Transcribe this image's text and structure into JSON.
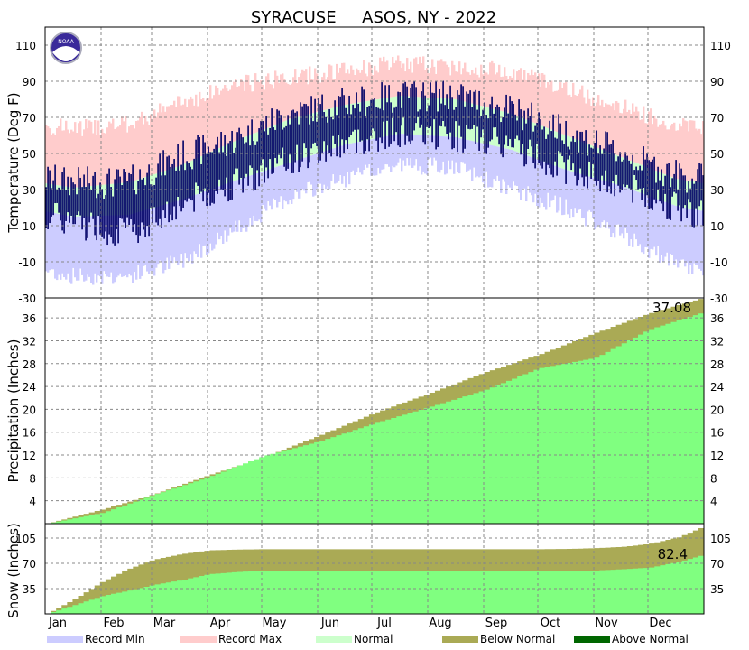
{
  "chart_data": [
    {
      "type": "bar",
      "panel": "temperature",
      "title": "SYRACUSE     ASOS, NY - 2022",
      "ylabel": "Temperature (Deg F)",
      "ylim": [
        -30,
        120
      ],
      "yticks": [
        -30,
        -10,
        10,
        30,
        50,
        70,
        90,
        110
      ],
      "grid": true,
      "months": [
        "Jan",
        "Feb",
        "Mar",
        "Apr",
        "May",
        "Jun",
        "Jul",
        "Aug",
        "Sep",
        "Oct",
        "Nov",
        "Dec"
      ],
      "x": [
        15,
        46,
        74,
        105,
        135,
        166,
        196,
        227,
        258,
        288,
        319,
        349
      ],
      "series": [
        {
          "name": "Record Min",
          "color": "#ccccff",
          "values": [
            -18,
            -18,
            -10,
            8,
            26,
            36,
            44,
            42,
            30,
            20,
            5,
            -12
          ]
        },
        {
          "name": "Record Max",
          "color": "#ffcccc",
          "values": [
            64,
            66,
            78,
            88,
            92,
            96,
            100,
            98,
            96,
            86,
            76,
            66
          ]
        },
        {
          "name": "Normal",
          "color": "#ccffcc",
          "low": [
            15,
            16,
            24,
            35,
            45,
            55,
            61,
            59,
            52,
            41,
            32,
            21
          ],
          "high": [
            31,
            34,
            43,
            57,
            69,
            77,
            82,
            80,
            72,
            60,
            48,
            36
          ]
        },
        {
          "name": "Observed",
          "color": "#000066",
          "low": [
            12,
            6,
            22,
            34,
            46,
            56,
            62,
            60,
            54,
            42,
            32,
            20
          ],
          "high": [
            34,
            34,
            48,
            58,
            72,
            78,
            82,
            82,
            74,
            62,
            50,
            38
          ]
        }
      ]
    },
    {
      "type": "area",
      "panel": "precipitation",
      "ylabel": "Precipitation (Inches)",
      "ylim": [
        0,
        39.5
      ],
      "yticks": [
        4,
        8,
        12,
        16,
        20,
        24,
        28,
        32,
        36
      ],
      "total_label": "37.08",
      "x": [
        0,
        31,
        59,
        90,
        120,
        151,
        181,
        212,
        243,
        273,
        304,
        334,
        365
      ],
      "series": [
        {
          "name": "Normal",
          "values": [
            0,
            2.5,
            5.1,
            8.5,
            11.6,
            15.4,
            19.3,
            22.8,
            26.5,
            29.6,
            33.4,
            36.8,
            39.6
          ]
        },
        {
          "name": "Observed",
          "values": [
            0,
            1.9,
            5.0,
            8.2,
            11.8,
            14.4,
            17.5,
            20.4,
            23.4,
            27.2,
            29.0,
            34.0,
            37.08
          ]
        }
      ]
    },
    {
      "type": "area",
      "panel": "snow",
      "ylabel": "Snow (Inches)",
      "ylim": [
        0,
        125
      ],
      "yticks": [
        35,
        70,
        105
      ],
      "total_label": "82.4",
      "x": [
        0,
        15,
        31,
        45,
        59,
        75,
        90,
        105,
        120,
        135,
        151,
        181,
        212,
        243,
        273,
        290,
        304,
        320,
        334,
        350,
        365
      ],
      "series": [
        {
          "name": "Normal",
          "values": [
            0,
            20,
            45,
            62,
            75,
            83,
            88,
            89,
            89.5,
            89.5,
            89.5,
            89.5,
            89.5,
            89.5,
            89.5,
            90,
            91,
            93,
            97,
            106,
            122
          ]
        },
        {
          "name": "Observed",
          "values": [
            0,
            12,
            25,
            32,
            40,
            47,
            55,
            58,
            60,
            60,
            60,
            60,
            60,
            60,
            60,
            60,
            60,
            62,
            64,
            72,
            82.4
          ]
        }
      ]
    }
  ],
  "legend": {
    "placement": "bottom",
    "items": [
      {
        "label": "Record Min",
        "color": "#ccccff"
      },
      {
        "label": "Record Max",
        "color": "#ffcccc"
      },
      {
        "label": "Normal",
        "color": "#ccffcc"
      },
      {
        "label": "Below Normal",
        "color": "#aaaa55"
      },
      {
        "label": "Above Normal",
        "color": "#006600"
      }
    ]
  },
  "colors": {
    "observed_temp": "#000066",
    "precip_fill": "#80ff80",
    "below_normal": "#aaaa55",
    "above_normal": "#006600",
    "noaa_logo": "#3a2a9a"
  },
  "logo": {
    "text": "NOAA"
  }
}
